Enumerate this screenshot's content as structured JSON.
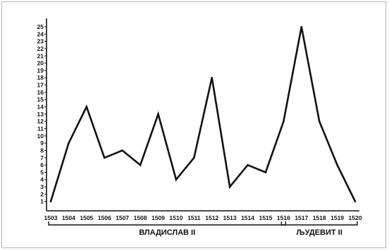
{
  "chart_data": {
    "type": "line",
    "x": [
      1503,
      1504,
      1505,
      1506,
      1507,
      1508,
      1509,
      1510,
      1511,
      1512,
      1513,
      1514,
      1515,
      1516,
      1517,
      1518,
      1519,
      1520
    ],
    "series": [
      {
        "values": [
          1,
          9,
          14,
          7,
          8,
          6,
          13,
          4,
          7,
          18,
          3,
          6,
          5,
          12,
          25,
          12,
          6,
          1
        ]
      }
    ],
    "yticks": [
      1,
      2,
      3,
      4,
      5,
      6,
      7,
      8,
      9,
      10,
      11,
      12,
      13,
      14,
      15,
      16,
      17,
      18,
      19,
      20,
      21,
      22,
      23,
      24,
      25
    ],
    "xticks": [
      "1503",
      "1504",
      "1505",
      "1506",
      "1507",
      "1508",
      "1509",
      "1510",
      "1511",
      "1512",
      "1513",
      "1514",
      "1515",
      "1516",
      "1517",
      "1518",
      "1519",
      "1520"
    ],
    "ylim": [
      0,
      25
    ],
    "grid": false,
    "title": "",
    "xlabel": "",
    "ylabel": "",
    "annotations": [
      {
        "label": "ВЛАДИСЛАВ II",
        "from": "1503",
        "to": "1516"
      },
      {
        "label": "ЉУДЕВИТ II",
        "from": "1516",
        "to": "1520"
      }
    ],
    "line_color": "#111111"
  }
}
